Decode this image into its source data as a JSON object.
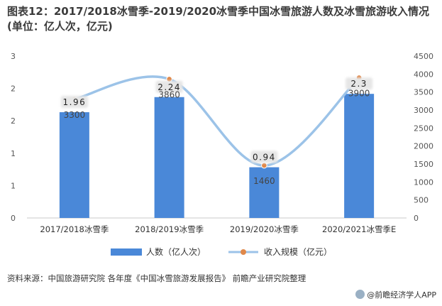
{
  "title": "图表12：2017/2018冰雪季-2019/2020冰雪季中国冰雪旅游人数及冰雪旅游收入情况(单位：亿人次，亿元)",
  "source": "资料来源：中国旅游研究院 各年度《中国冰雪旅游发展报告》 前瞻产业研究院整理",
  "credit": "@前瞻经济学人APP",
  "colors": {
    "bar": "#4a88d8",
    "line": "#9cc3e8",
    "marker": "#e0884a",
    "axis": "#c8c8c8",
    "tick_text": "#555555"
  },
  "chart_data": {
    "type": "bar",
    "categories": [
      "2017/2018冰雪季",
      "2018/2019冰雪季",
      "2019/2020冰雪季",
      "2020/2021冰雪季E"
    ],
    "series": [
      {
        "name": "人数（亿人次）",
        "type": "bar",
        "axis": "left",
        "values": [
          1.96,
          2.24,
          0.94,
          2.3
        ],
        "labels": [
          "1.96",
          "2.24",
          "0.94",
          "2.3"
        ]
      },
      {
        "name": "收入规模（亿元）",
        "type": "line",
        "axis": "right",
        "values": [
          3300,
          3860,
          1460,
          3900
        ],
        "labels": [
          "3300",
          "3860",
          "1460",
          "3900"
        ]
      }
    ],
    "left_axis": {
      "ylim": [
        0,
        3
      ],
      "tick_labels": [
        "0",
        "1",
        "1",
        "2",
        "2",
        "3"
      ]
    },
    "right_axis": {
      "ylim": [
        0,
        4500
      ],
      "tick_labels": [
        "0",
        "500",
        "1000",
        "1500",
        "2000",
        "2500",
        "3000",
        "3500",
        "4000",
        "4500"
      ]
    },
    "legend_position": "bottom"
  }
}
